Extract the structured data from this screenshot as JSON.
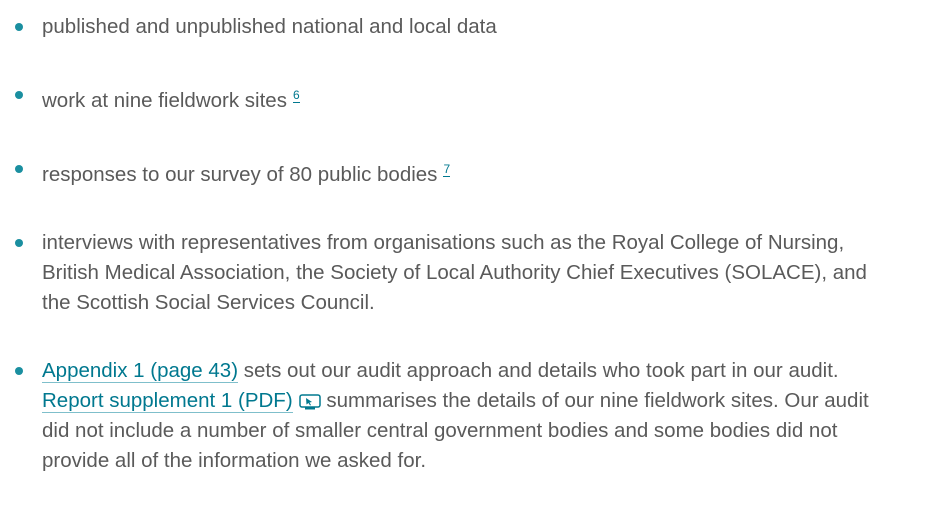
{
  "list": [
    {
      "segments": [
        {
          "text": "published and unpublished national and local data"
        }
      ]
    },
    {
      "segments": [
        {
          "text": "work at nine fieldwork sites"
        }
      ],
      "footnote": "6"
    },
    {
      "segments": [
        {
          "text": "responses to our survey of 80 public bodies"
        }
      ],
      "footnote": "7"
    },
    {
      "segments": [
        {
          "text": "interviews with representatives from organisations such as the Royal College of Nursing, British Medical Association, the Society of Local Authority Chief Executives (SOLACE), and the Scottish Social Services Council."
        }
      ]
    },
    {
      "segments": [
        {
          "link": "Appendix 1 (page 43)"
        },
        {
          "text": " sets out our audit approach and details who took part in our audit. "
        },
        {
          "link": "Report supplement 1 (PDF)",
          "icon": true
        },
        {
          "text": " summarises the details of our nine fieldwork sites. Our audit did not include a number of smaller central government bodies and some bodies did not provide all of the information we asked for."
        }
      ]
    }
  ]
}
